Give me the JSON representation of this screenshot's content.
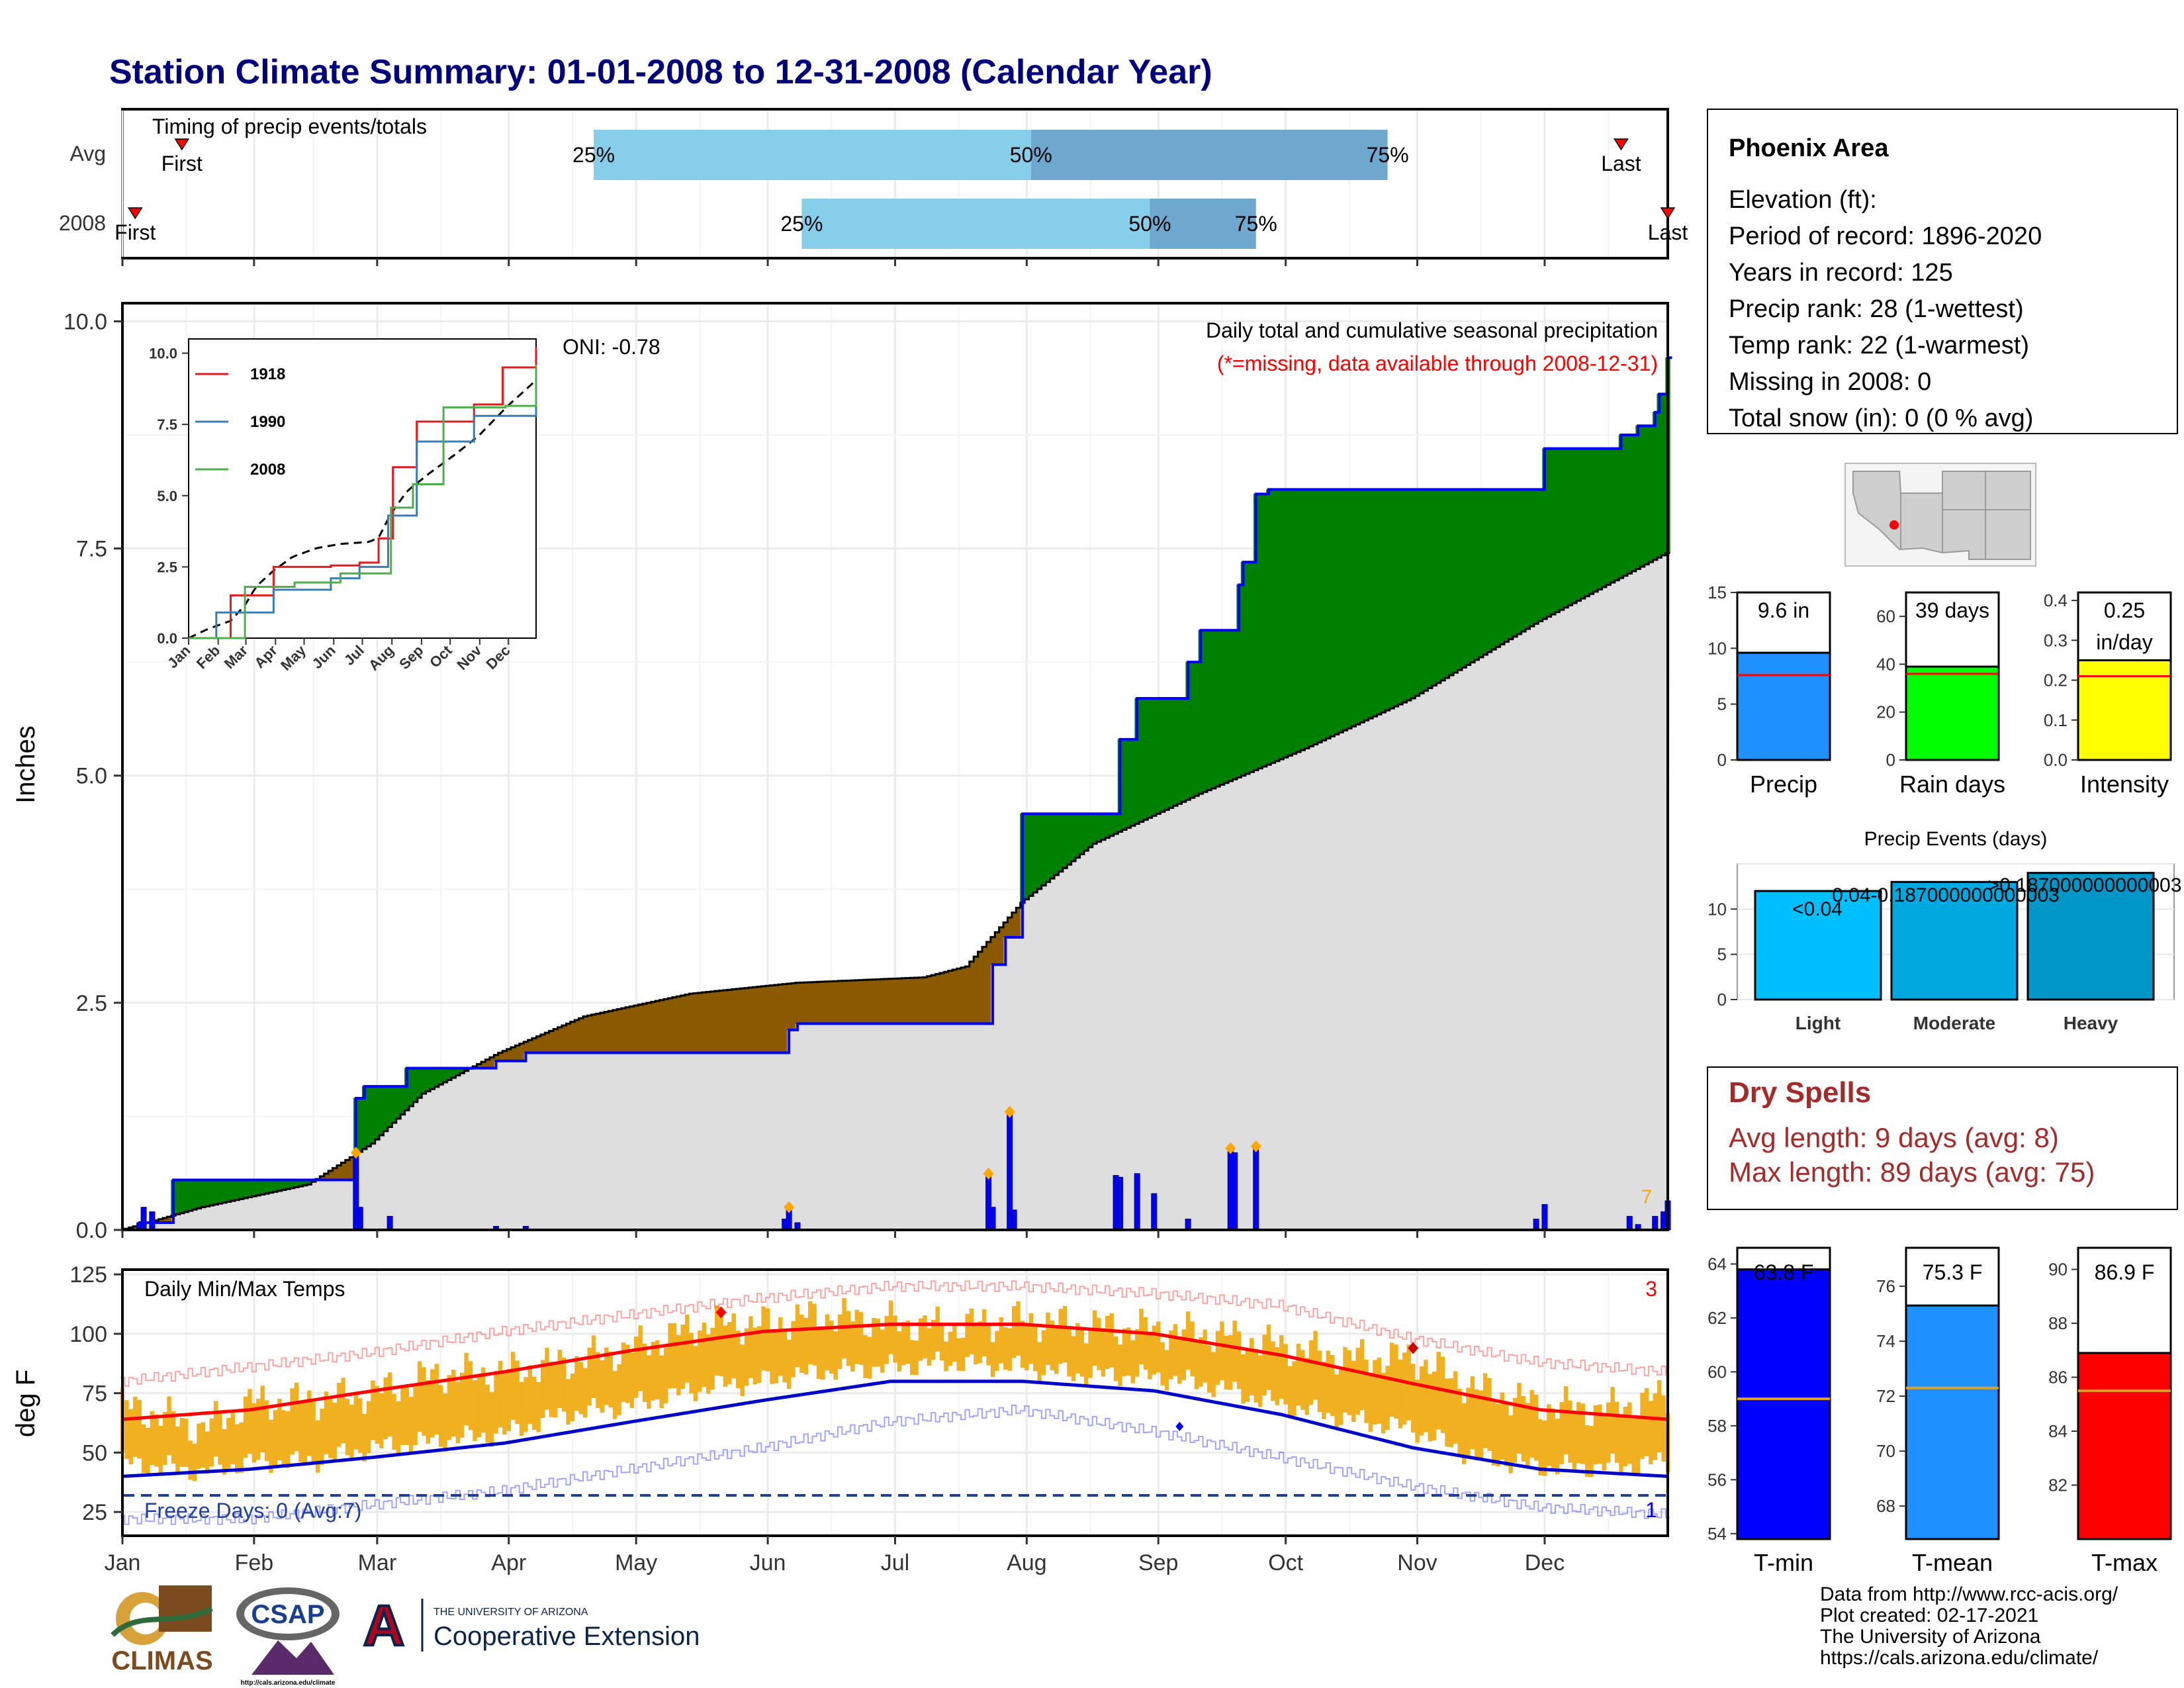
{
  "title": "Station Climate Summary: 01-01-2008 to 12-31-2008 (Calendar Year)",
  "colors": {
    "title": "#00007f",
    "cumulative_fill_above": "#008000",
    "cumulative_fill_below": "#8b5a00",
    "normal_fill": "#dedede",
    "daily_bars": "#0000ff",
    "timing_light": "#87ceeb",
    "timing_dark": "#6fa8cf",
    "temp_bars": "#f0b020",
    "temp_max_normal": "#ff0000",
    "temp_min_normal": "#0000cc",
    "dry_spell_text": "#a52a2a"
  },
  "timing": {
    "panel_label": "Timing of precip events/totals",
    "rows": [
      {
        "label": "Avg",
        "first_doy": 15,
        "q25_doy": 112,
        "q50_doy": 215,
        "q75_doy": 299,
        "last_doy": 354,
        "first_label": "First",
        "last_label": "Last"
      },
      {
        "label": "2008",
        "first_doy": 4,
        "q25_doy": 161,
        "q50_doy": 243,
        "q75_doy": 268,
        "last_doy": 365,
        "first_label": "First",
        "last_label": "Last"
      }
    ],
    "quantile_labels": [
      "25%",
      "50%",
      "75%"
    ]
  },
  "precip": {
    "header": "Daily total and cumulative seasonal precipitation",
    "missing_note": "(*=missing, data available through 2008-12-31)",
    "oni": "ONI: -0.78",
    "ylabel": "Inches",
    "yticks": [
      "0.0",
      "2.5",
      "5.0",
      "7.5",
      "10.0"
    ],
    "corner_count": "7",
    "inset_legend": [
      "1918",
      "1990",
      "2008"
    ],
    "inset_yticks": [
      "0.0",
      "2.5",
      "5.0",
      "7.5",
      "10.0"
    ],
    "inset_xticks": [
      "Jan",
      "Feb",
      "Mar",
      "Apr",
      "May",
      "Jun",
      "Jul",
      "Aug",
      "Sep",
      "Oct",
      "Nov",
      "Dec"
    ]
  },
  "temps": {
    "header": "Daily Min/Max Temps",
    "ylabel": "deg F",
    "yticks": [
      "25",
      "50",
      "75",
      "100",
      "125"
    ],
    "freeze_label": "Freeze Days: 0 (Avg:7)",
    "record_high_count": "3",
    "record_low_count": "1"
  },
  "months": [
    "Jan",
    "Feb",
    "Mar",
    "Apr",
    "May",
    "Jun",
    "Jul",
    "Aug",
    "Sep",
    "Oct",
    "Nov",
    "Dec"
  ],
  "station": {
    "name": "Phoenix Area",
    "lines": [
      "Elevation (ft):",
      "Period of record: 1896-2020",
      "Years in record: 125",
      "Precip rank: 28 (1-wettest)",
      "Temp rank: 22 (1-warmest)",
      "Missing in 2008: 0",
      "Total snow (in): 0 (0 % avg)"
    ]
  },
  "summary_bars": [
    {
      "label": "Precip",
      "value": 9.6,
      "avg": 7.6,
      "value_text": "9.6 in",
      "max": 15,
      "ticks": [
        "0",
        "5",
        "10",
        "15"
      ],
      "color": "#1e90ff"
    },
    {
      "label": "Rain days",
      "value": 39,
      "avg": 36,
      "value_text": "39 days",
      "max": 70,
      "ticks": [
        "0",
        "20",
        "40",
        "60"
      ],
      "color": "#00ff00"
    },
    {
      "label": "Intensity",
      "value": 0.25,
      "avg": 0.21,
      "value_text": "0.25\nin/day",
      "max": 0.42,
      "ticks": [
        "0.0",
        "0.1",
        "0.2",
        "0.3",
        "0.4"
      ],
      "color": "#ffff00"
    }
  ],
  "precip_events": {
    "title": "Precip Events (days)",
    "yticks": [
      "0",
      "5",
      "10"
    ],
    "bars": [
      {
        "label": "Light",
        "value": 12,
        "bar_text": "<0.04",
        "color": "#00bfff"
      },
      {
        "label": "Moderate",
        "value": 13,
        "bar_text": "0.04-0.187000000000003",
        "color": "#00a8e0"
      },
      {
        "label": "Heavy",
        "value": 14,
        "bar_text": ">0.187000000000003",
        "color": "#0096c8"
      }
    ]
  },
  "dry_spells": {
    "title": "Dry Spells",
    "avg_line": "Avg length: 9 days (avg: 8)",
    "max_line": "Max length: 89 days (avg: 75)"
  },
  "temp_bars": [
    {
      "label": "T-min",
      "value": 63.8,
      "avg": 59.0,
      "value_text": "63.8 F",
      "min": 53.8,
      "max": 64.6,
      "ticks": [
        "54",
        "56",
        "58",
        "60",
        "62",
        "64"
      ],
      "color": "#0000ff"
    },
    {
      "label": "T-mean",
      "value": 75.3,
      "avg": 72.3,
      "value_text": "75.3 F",
      "min": 66.8,
      "max": 77.4,
      "ticks": [
        "68",
        "70",
        "72",
        "74",
        "76"
      ],
      "color": "#1e90ff"
    },
    {
      "label": "T-max",
      "value": 86.9,
      "avg": 85.5,
      "value_text": "86.9 F",
      "min": 80.0,
      "max": 90.8,
      "ticks": [
        "82",
        "84",
        "86",
        "88",
        "90"
      ],
      "color": "#ff0000"
    }
  ],
  "footer": {
    "credits": [
      "Data from http://www.rcc-acis.org/",
      "Plot created: 02-17-2021",
      "The University of Arizona",
      "https://cals.arizona.edu/climate/"
    ],
    "logo_climas": "CLIMAS",
    "logo_csap": "CSAP",
    "logo_csap_url": "http://cals.arizona.edu/climate",
    "logo_ua_small": "THE UNIVERSITY OF ARIZONA",
    "logo_ua_big": "Cooperative Extension",
    "logo_ua_mark": "A"
  },
  "chart_data": [
    {
      "type": "area",
      "title": "Daily total and cumulative seasonal precipitation",
      "ylabel": "Inches",
      "ylim": [
        0,
        10.2
      ],
      "xlim": [
        "2008-01-01",
        "2008-12-31"
      ],
      "cumulative_2008_steps": [
        [
          1,
          0
        ],
        [
          5,
          0.08
        ],
        [
          13,
          0.55
        ],
        [
          55,
          0.55
        ],
        [
          56,
          1.45
        ],
        [
          58,
          1.58
        ],
        [
          68,
          1.78
        ],
        [
          89,
          1.86
        ],
        [
          96,
          1.95
        ],
        [
          112,
          1.95
        ],
        [
          157,
          1.95
        ],
        [
          158,
          2.2
        ],
        [
          160,
          2.27
        ],
        [
          205,
          2.27
        ],
        [
          206,
          2.92
        ],
        [
          209,
          3.22
        ],
        [
          213,
          4.58
        ],
        [
          235,
          4.58
        ],
        [
          236,
          5.4
        ],
        [
          240,
          5.85
        ],
        [
          252,
          6.25
        ],
        [
          255,
          6.6
        ],
        [
          264,
          7.1
        ],
        [
          265,
          7.35
        ],
        [
          268,
          8.1
        ],
        [
          271,
          8.15
        ],
        [
          333,
          8.15
        ],
        [
          336,
          8.6
        ],
        [
          354,
          8.75
        ],
        [
          358,
          8.85
        ],
        [
          362,
          9.0
        ],
        [
          363,
          9.2
        ],
        [
          365,
          9.6
        ]
      ],
      "normal_cumulative_steps": [
        [
          1,
          0
        ],
        [
          20,
          0.25
        ],
        [
          45,
          0.5
        ],
        [
          60,
          0.95
        ],
        [
          72,
          1.5
        ],
        [
          90,
          1.95
        ],
        [
          110,
          2.35
        ],
        [
          135,
          2.6
        ],
        [
          160,
          2.72
        ],
        [
          190,
          2.78
        ],
        [
          200,
          2.9
        ],
        [
          213,
          3.6
        ],
        [
          230,
          4.25
        ],
        [
          255,
          4.8
        ],
        [
          280,
          5.3
        ],
        [
          305,
          5.85
        ],
        [
          335,
          6.7
        ],
        [
          365,
          7.45
        ]
      ],
      "daily_totals": [
        [
          5,
          0.08
        ],
        [
          6,
          0.25
        ],
        [
          8,
          0.2
        ],
        [
          56,
          0.85
        ],
        [
          57,
          0.25
        ],
        [
          64,
          0.15
        ],
        [
          89,
          0.04
        ],
        [
          96,
          0.04
        ],
        [
          157,
          0.12
        ],
        [
          158,
          0.25
        ],
        [
          160,
          0.08
        ],
        [
          205,
          0.62
        ],
        [
          206,
          0.25
        ],
        [
          210,
          1.3
        ],
        [
          211,
          0.22
        ],
        [
          235,
          0.6
        ],
        [
          236,
          0.58
        ],
        [
          240,
          0.62
        ],
        [
          244,
          0.4
        ],
        [
          252,
          0.12
        ],
        [
          262,
          0.9
        ],
        [
          263,
          0.85
        ],
        [
          268,
          0.92
        ],
        [
          334,
          0.12
        ],
        [
          336,
          0.28
        ],
        [
          356,
          0.15
        ],
        [
          358,
          0.06
        ],
        [
          362,
          0.15
        ],
        [
          364,
          0.2
        ],
        [
          365,
          0.32
        ]
      ]
    },
    {
      "type": "line",
      "title": "Daily Min/Max Temps",
      "ylabel": "deg F",
      "ylim": [
        15,
        127
      ],
      "freeze_line": 32,
      "normal_max_points": [
        [
          1,
          64
        ],
        [
          31,
          68
        ],
        [
          60,
          76
        ],
        [
          91,
          84
        ],
        [
          121,
          93
        ],
        [
          152,
          101
        ],
        [
          182,
          104
        ],
        [
          213,
          104
        ],
        [
          244,
          100
        ],
        [
          274,
          91
        ],
        [
          305,
          79
        ],
        [
          335,
          68
        ],
        [
          365,
          64
        ]
      ],
      "normal_min_points": [
        [
          1,
          40
        ],
        [
          31,
          43
        ],
        [
          60,
          48
        ],
        [
          91,
          54
        ],
        [
          121,
          63
        ],
        [
          152,
          72
        ],
        [
          182,
          80
        ],
        [
          213,
          80
        ],
        [
          244,
          76
        ],
        [
          274,
          66
        ],
        [
          305,
          52
        ],
        [
          335,
          43
        ],
        [
          365,
          40
        ]
      ],
      "record_max_points": [
        [
          1,
          80
        ],
        [
          31,
          86
        ],
        [
          60,
          92
        ],
        [
          91,
          101
        ],
        [
          121,
          108
        ],
        [
          152,
          115
        ],
        [
          182,
          120
        ],
        [
          213,
          120
        ],
        [
          244,
          117
        ],
        [
          274,
          112
        ],
        [
          305,
          98
        ],
        [
          335,
          88
        ],
        [
          365,
          84
        ]
      ],
      "record_min_points": [
        [
          1,
          22
        ],
        [
          31,
          22
        ],
        [
          60,
          28
        ],
        [
          91,
          34
        ],
        [
          121,
          43
        ],
        [
          152,
          52
        ],
        [
          182,
          63
        ],
        [
          213,
          68
        ],
        [
          244,
          59
        ],
        [
          274,
          48
        ],
        [
          305,
          36
        ],
        [
          335,
          27
        ],
        [
          365,
          24
        ]
      ],
      "daily_max_points": [
        [
          1,
          70
        ],
        [
          10,
          66
        ],
        [
          20,
          60
        ],
        [
          31,
          71
        ],
        [
          45,
          72
        ],
        [
          60,
          75
        ],
        [
          75,
          83
        ],
        [
          91,
          84
        ],
        [
          105,
          88
        ],
        [
          121,
          94
        ],
        [
          140,
          105
        ],
        [
          152,
          104
        ],
        [
          165,
          108
        ],
        [
          182,
          105
        ],
        [
          195,
          103
        ],
        [
          213,
          106
        ],
        [
          225,
          104
        ],
        [
          244,
          102
        ],
        [
          258,
          100
        ],
        [
          274,
          95
        ],
        [
          290,
          90
        ],
        [
          305,
          90
        ],
        [
          320,
          77
        ],
        [
          335,
          70
        ],
        [
          350,
          68
        ],
        [
          365,
          74
        ]
      ],
      "daily_min_points": [
        [
          1,
          46
        ],
        [
          10,
          44
        ],
        [
          20,
          42
        ],
        [
          31,
          46
        ],
        [
          45,
          46
        ],
        [
          60,
          52
        ],
        [
          75,
          55
        ],
        [
          91,
          58
        ],
        [
          105,
          66
        ],
        [
          121,
          70
        ],
        [
          140,
          78
        ],
        [
          152,
          80
        ],
        [
          165,
          84
        ],
        [
          182,
          86
        ],
        [
          195,
          88
        ],
        [
          213,
          86
        ],
        [
          225,
          83
        ],
        [
          244,
          82
        ],
        [
          258,
          78
        ],
        [
          274,
          70
        ],
        [
          290,
          64
        ],
        [
          305,
          60
        ],
        [
          320,
          48
        ],
        [
          335,
          44
        ],
        [
          350,
          44
        ],
        [
          365,
          46
        ]
      ]
    },
    {
      "type": "line",
      "title": "Inset cumulative precipitation comparison",
      "series": [
        {
          "name": "1918",
          "points": [
            [
              1,
              0
            ],
            [
              45,
              1.5
            ],
            [
              90,
              2.5
            ],
            [
              150,
              2.55
            ],
            [
              180,
              2.65
            ],
            [
              200,
              3.5
            ],
            [
              215,
              6
            ],
            [
              240,
              7.6
            ],
            [
              300,
              8.2
            ],
            [
              330,
              9.5
            ],
            [
              365,
              10.2
            ]
          ]
        },
        {
          "name": "1990",
          "points": [
            [
              1,
              0
            ],
            [
              30,
              0.9
            ],
            [
              90,
              1.7
            ],
            [
              150,
              2.1
            ],
            [
              180,
              2.5
            ],
            [
              210,
              4.3
            ],
            [
              240,
              6.9
            ],
            [
              300,
              7.8
            ],
            [
              365,
              9.1
            ]
          ]
        },
        {
          "name": "2008",
          "points": [
            [
              1,
              0
            ],
            [
              60,
              1.8
            ],
            [
              112,
              1.95
            ],
            [
              160,
              2.27
            ],
            [
              205,
              2.27
            ],
            [
              213,
              4.58
            ],
            [
              236,
              5.4
            ],
            [
              268,
              8.1
            ],
            [
              333,
              8.15
            ],
            [
              365,
              9.6
            ]
          ]
        }
      ]
    }
  ]
}
